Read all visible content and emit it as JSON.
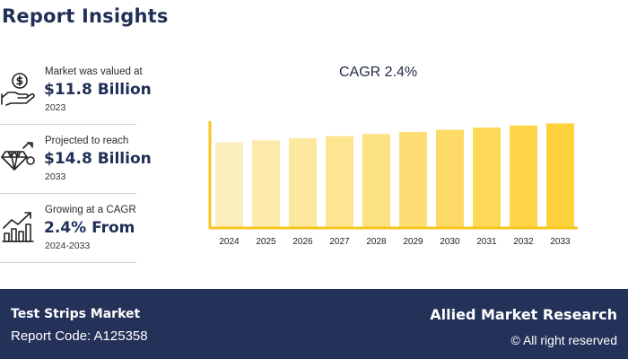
{
  "header": {
    "title": "Report Insights"
  },
  "insights": [
    {
      "icon": "money-hand-icon",
      "label": "Market was valued at",
      "value": "$11.8 Billion",
      "year": "2023"
    },
    {
      "icon": "diamond-growth-icon",
      "label": "Projected to reach",
      "value": "$14.8 Billion",
      "year": "2033"
    },
    {
      "icon": "growth-chart-icon",
      "label": "Growing at a CAGR",
      "value": "2.4% From",
      "year": "2024-2033"
    }
  ],
  "chart_data": {
    "type": "bar",
    "title": "CAGR 2.4%",
    "categories": [
      "2024",
      "2025",
      "2026",
      "2027",
      "2028",
      "2029",
      "2030",
      "2031",
      "2032",
      "2033"
    ],
    "values": [
      12.1,
      12.4,
      12.7,
      13.0,
      13.3,
      13.6,
      13.9,
      14.2,
      14.5,
      14.8
    ],
    "ylim": [
      0,
      16
    ],
    "grid": false,
    "colors": {
      "bar_start": "#fdeebd",
      "bar_end": "#fed23a",
      "axis": "#f7c51e"
    }
  },
  "footer": {
    "market": "Test Strips Market",
    "report_code": "Report Code: A125358",
    "brand": "Allied Market Research",
    "rights": "© All right reserved"
  }
}
